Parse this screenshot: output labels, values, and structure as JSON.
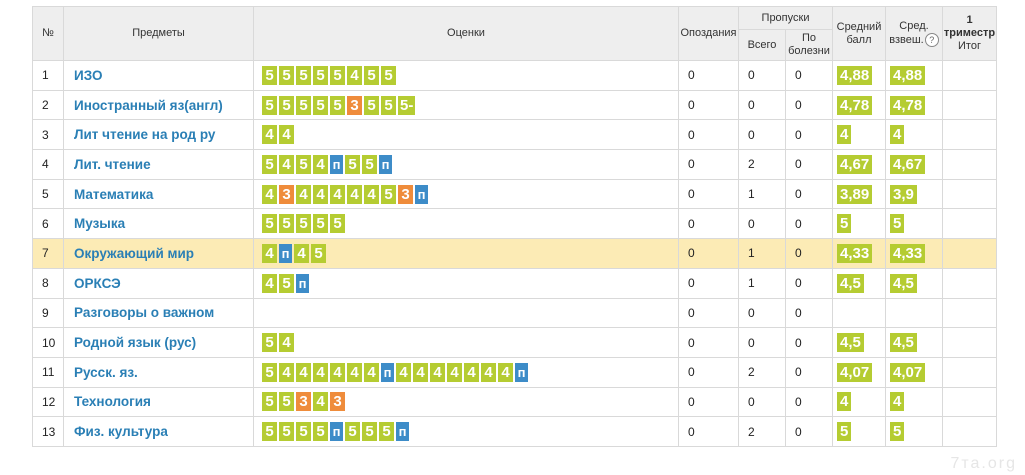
{
  "headers": {
    "num": "№",
    "subjects": "Предметы",
    "grades": "Оценки",
    "late": "Опоздания",
    "absences": "Пропуски",
    "absences_total": "Всего",
    "absences_sick": "По болезни",
    "average": "Средний балл",
    "weighted": "Сред. взвеш.",
    "help": "?",
    "final_term": "1 триместр",
    "final_label": "Итог"
  },
  "colors": {
    "good": "#b5cc32",
    "mid": "#ef8c3b",
    "absent": "#3d8cc8",
    "link": "#2a7fb5",
    "highlight": "#fcebb5"
  },
  "rows": [
    {
      "num": "1",
      "subject": "ИЗО",
      "marks": [
        "5",
        "5",
        "5",
        "5",
        "5",
        "4",
        "5",
        "5"
      ],
      "late": "0",
      "total": "0",
      "sick": "0",
      "avg": "4,88",
      "wavg": "4,88",
      "final": ""
    },
    {
      "num": "2",
      "subject": "Иностранный яз(англ)",
      "marks": [
        "5",
        "5",
        "5",
        "5",
        "5",
        "3",
        "5",
        "5",
        "5-"
      ],
      "late": "0",
      "total": "0",
      "sick": "0",
      "avg": "4,78",
      "wavg": "4,78",
      "final": ""
    },
    {
      "num": "3",
      "subject": "Лит чтение на род ру",
      "marks": [
        "4",
        "4"
      ],
      "late": "0",
      "total": "0",
      "sick": "0",
      "avg": "4",
      "wavg": "4",
      "final": ""
    },
    {
      "num": "4",
      "subject": "Лит. чтение",
      "marks": [
        "5",
        "4",
        "5",
        "4",
        "п",
        "5",
        "5",
        "п"
      ],
      "late": "0",
      "total": "2",
      "sick": "0",
      "avg": "4,67",
      "wavg": "4,67",
      "final": ""
    },
    {
      "num": "5",
      "subject": "Математика",
      "marks": [
        "4",
        "3",
        "4",
        "4",
        "4",
        "4",
        "4",
        "5",
        "3",
        "п"
      ],
      "late": "0",
      "total": "1",
      "sick": "0",
      "avg": "3,89",
      "wavg": "3,9",
      "final": ""
    },
    {
      "num": "6",
      "subject": "Музыка",
      "marks": [
        "5",
        "5",
        "5",
        "5",
        "5"
      ],
      "late": "0",
      "total": "0",
      "sick": "0",
      "avg": "5",
      "wavg": "5",
      "final": ""
    },
    {
      "num": "7",
      "subject": "Окружающий мир",
      "marks": [
        "4",
        "п",
        "4",
        "5"
      ],
      "late": "0",
      "total": "1",
      "sick": "0",
      "avg": "4,33",
      "wavg": "4,33",
      "final": "",
      "highlight": true
    },
    {
      "num": "8",
      "subject": "ОРКСЭ",
      "marks": [
        "4",
        "5",
        "п"
      ],
      "late": "0",
      "total": "1",
      "sick": "0",
      "avg": "4,5",
      "wavg": "4,5",
      "final": ""
    },
    {
      "num": "9",
      "subject": "Разговоры о важном",
      "marks": [],
      "late": "0",
      "total": "0",
      "sick": "0",
      "avg": "",
      "wavg": "",
      "final": ""
    },
    {
      "num": "10",
      "subject": "Родной язык (рус)",
      "marks": [
        "5",
        "4"
      ],
      "late": "0",
      "total": "0",
      "sick": "0",
      "avg": "4,5",
      "wavg": "4,5",
      "final": ""
    },
    {
      "num": "11",
      "subject": "Русск. яз.",
      "marks": [
        "5",
        "4",
        "4",
        "4",
        "4",
        "4",
        "4",
        "п",
        "4",
        "4",
        "4",
        "4",
        "4",
        "4",
        "4",
        "п"
      ],
      "late": "0",
      "total": "2",
      "sick": "0",
      "avg": "4,07",
      "wavg": "4,07",
      "final": ""
    },
    {
      "num": "12",
      "subject": "Технология",
      "marks": [
        "5",
        "5",
        "3",
        "4",
        "3"
      ],
      "late": "0",
      "total": "0",
      "sick": "0",
      "avg": "4",
      "wavg": "4",
      "final": ""
    },
    {
      "num": "13",
      "subject": "Физ. культура",
      "marks": [
        "5",
        "5",
        "5",
        "5",
        "п",
        "5",
        "5",
        "5",
        "п"
      ],
      "late": "0",
      "total": "2",
      "sick": "0",
      "avg": "5",
      "wavg": "5",
      "final": ""
    }
  ],
  "watermark": "7та.org"
}
